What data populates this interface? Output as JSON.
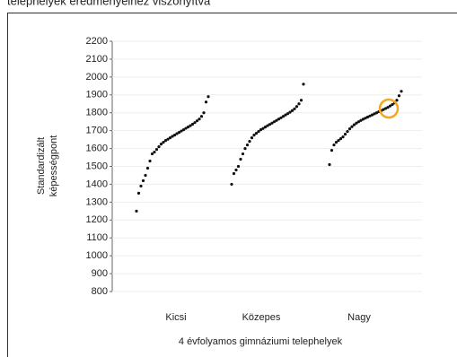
{
  "caption": "telephelyek eredményeihez viszonyítva",
  "chart_data": {
    "type": "dotstrip",
    "y_label_lines": [
      "Standardizált",
      "képességpont"
    ],
    "x_label": "4 évfolyamos gimnáziumi telephelyek",
    "categories": [
      "Kicsi",
      "Közepes",
      "Nagy"
    ],
    "groups": [
      {
        "values": [
          1250,
          1350,
          1390,
          1420,
          1450,
          1490,
          1530,
          1570,
          1580,
          1595,
          1610,
          1625,
          1635,
          1645,
          1652,
          1660,
          1668,
          1675,
          1683,
          1690,
          1698,
          1705,
          1713,
          1720,
          1728,
          1736,
          1745,
          1755,
          1765,
          1780,
          1800,
          1860,
          1890
        ]
      },
      {
        "values": [
          1400,
          1460,
          1480,
          1500,
          1540,
          1570,
          1600,
          1620,
          1640,
          1660,
          1675,
          1685,
          1695,
          1705,
          1712,
          1720,
          1728,
          1735,
          1742,
          1750,
          1757,
          1765,
          1772,
          1780,
          1788,
          1795,
          1803,
          1812,
          1822,
          1835,
          1850,
          1870,
          1960
        ]
      },
      {
        "values": [
          1510,
          1590,
          1620,
          1635,
          1645,
          1655,
          1665,
          1680,
          1695,
          1710,
          1722,
          1733,
          1742,
          1750,
          1757,
          1764,
          1770,
          1776,
          1782,
          1788,
          1794,
          1800,
          1806,
          1812,
          1818,
          1824,
          1830,
          1838,
          1846,
          1855,
          1870,
          1895,
          1920
        ]
      }
    ],
    "color": "#111111",
    "ylim": [
      800,
      2200
    ],
    "yticks": [
      800,
      900,
      1000,
      1100,
      1200,
      1300,
      1400,
      1500,
      1600,
      1700,
      1800,
      1900,
      2000,
      2100,
      2200
    ],
    "grid": true
  }
}
